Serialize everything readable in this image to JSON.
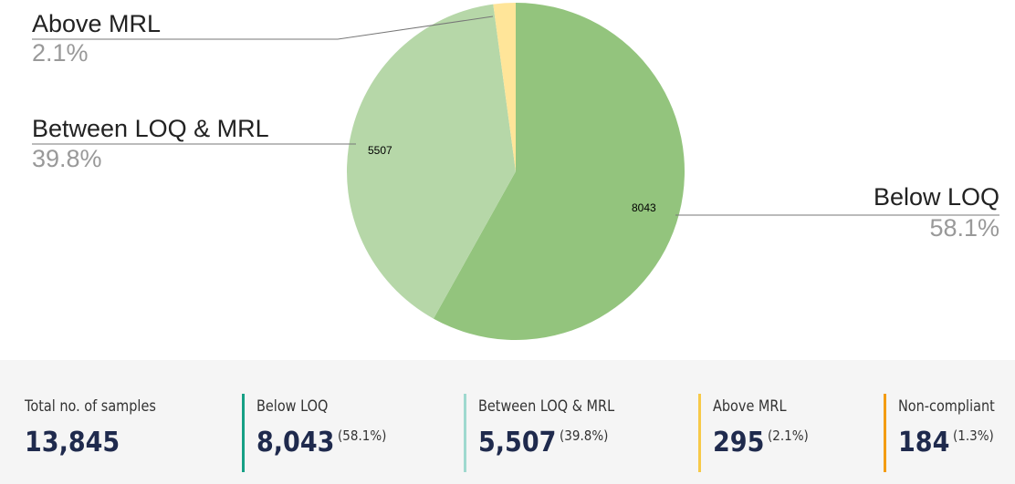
{
  "chart_data": {
    "type": "pie",
    "categories": [
      "Below LOQ",
      "Between LOQ & MRL",
      "Above MRL"
    ],
    "values": [
      8043,
      5507,
      295
    ],
    "percent_labels": [
      "58.1%",
      "39.8%",
      "2.1%"
    ],
    "colors": [
      "#93c47d",
      "#b6d7a8",
      "#ffe599"
    ]
  },
  "stats": [
    {
      "label": "Total no. of samples",
      "value": "13,845"
    },
    {
      "label": "Below LOQ",
      "value": "8,043",
      "percent": "(58.1%)",
      "color": "#16a085"
    },
    {
      "label": "Between LOQ & MRL",
      "value": "5,507",
      "percent": "(39.8%)",
      "color": "#9fd9cf"
    },
    {
      "label": "Above MRL",
      "value": "295",
      "percent": "(2.1%)",
      "color": "#f7c948"
    },
    {
      "label": "Non-compliant",
      "value": "184",
      "percent": "(1.3%)",
      "color": "#f39c12"
    }
  ]
}
